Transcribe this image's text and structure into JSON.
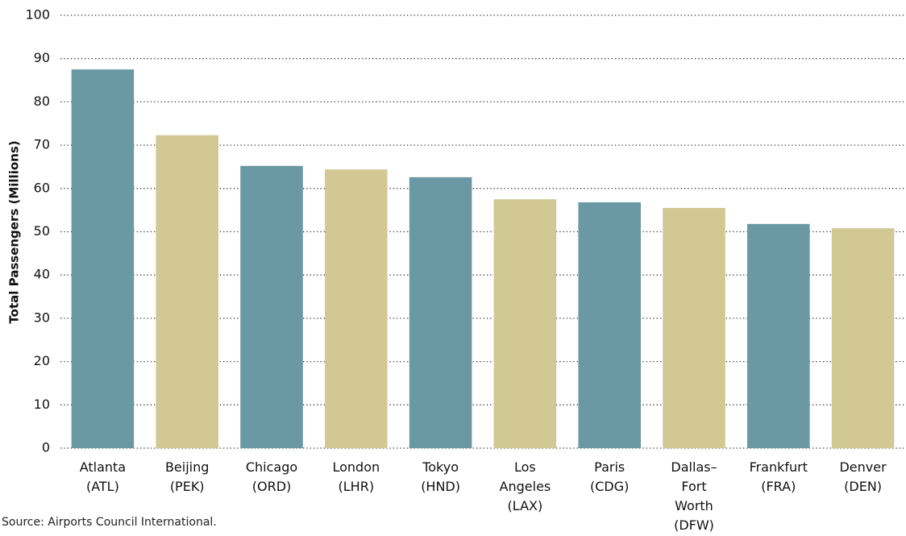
{
  "chart_data": {
    "type": "bar",
    "y_label": "Total Passengers (Millions)",
    "source": "Source: Airports Council International.",
    "categories": [
      "Atlanta\n(ATL)",
      "Beijing\n(PEK)",
      "Chicago\n(ORD)",
      "London\n(LHR)",
      "Tokyo\n(HND)",
      "Los\nAngeles\n(LAX)",
      "Paris\n(CDG)",
      "Dallas–\nFort\nWorth\n(DFW)",
      "Frankfurt\n(FRA)",
      "Denver\n(DEN)"
    ],
    "values": [
      87.5,
      72.3,
      65.2,
      64.4,
      62.6,
      57.5,
      56.8,
      55.5,
      51.8,
      50.8
    ],
    "colors": [
      "#6a98a3",
      "#d2c894",
      "#6a98a3",
      "#d2c894",
      "#6a98a3",
      "#d2c894",
      "#6a98a3",
      "#d2c894",
      "#6a98a3",
      "#d2c894"
    ],
    "ylim": [
      0,
      100
    ],
    "yticks": [
      0,
      10,
      20,
      30,
      40,
      50,
      60,
      70,
      80,
      90,
      100
    ],
    "grid": true
  }
}
